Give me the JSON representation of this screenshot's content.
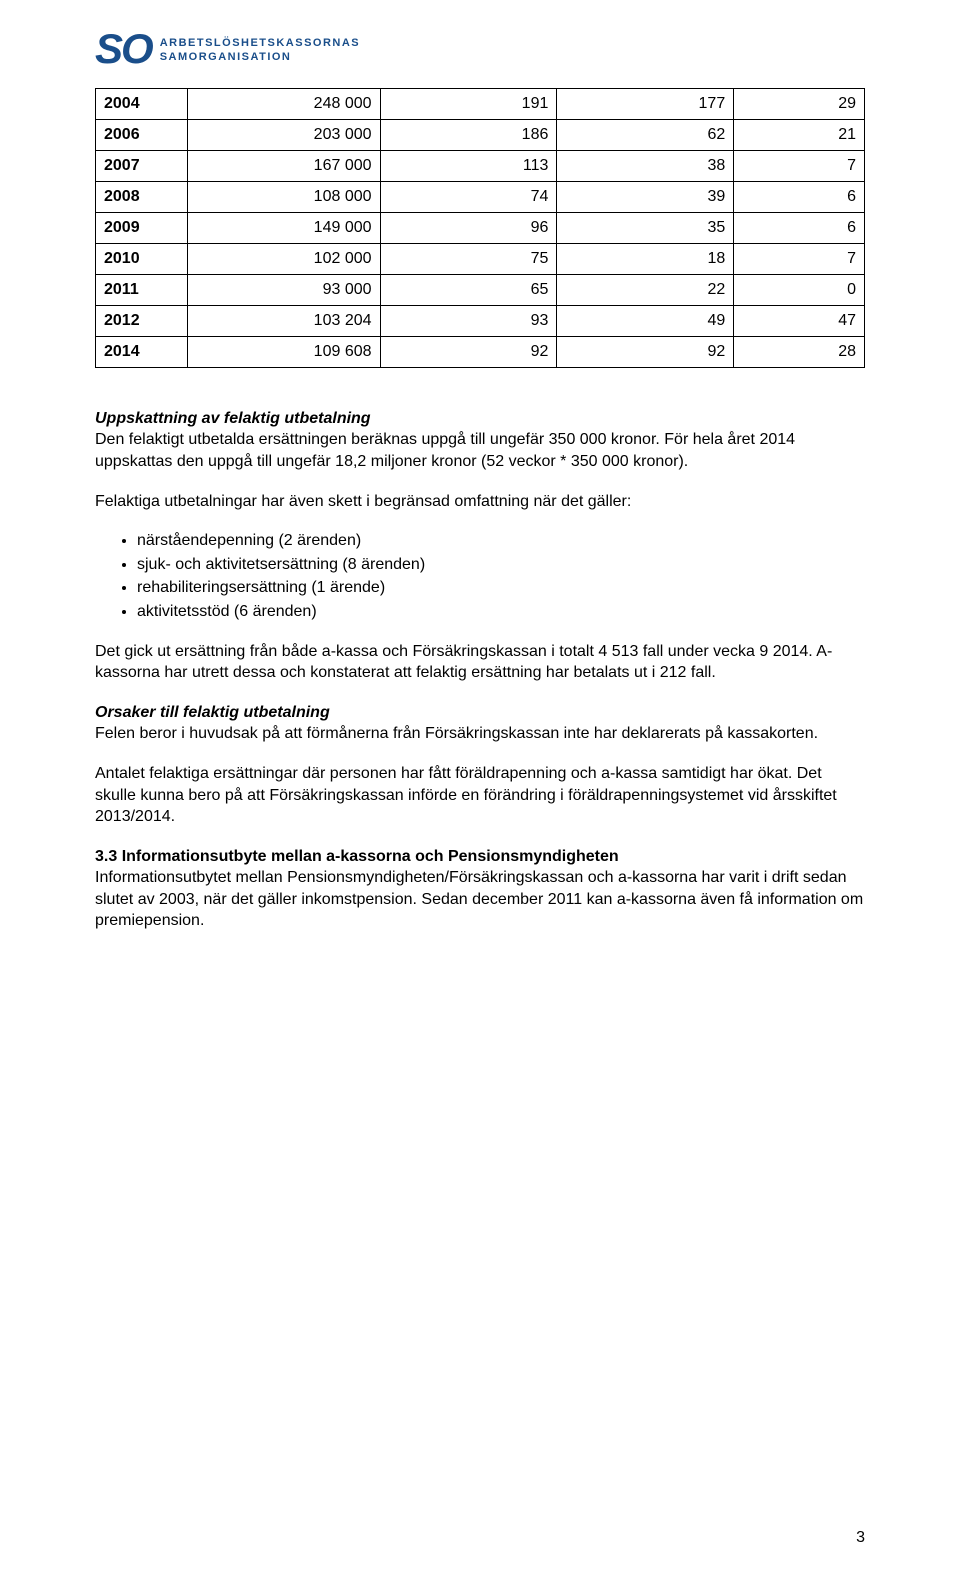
{
  "logo": {
    "mark": "SO",
    "line1": "ARBETSLÖSHETSKASSORNAS",
    "line2": "SAMORGANISATION",
    "color": "#1a4e8a"
  },
  "table": {
    "rows": [
      {
        "year": "2004",
        "b": "248 000",
        "c": "191",
        "d": "177",
        "e": "29"
      },
      {
        "year": "2006",
        "b": "203 000",
        "c": "186",
        "d": "62",
        "e": "21"
      },
      {
        "year": "2007",
        "b": "167 000",
        "c": "113",
        "d": "38",
        "e": "7"
      },
      {
        "year": "2008",
        "b": "108 000",
        "c": "74",
        "d": "39",
        "e": "6"
      },
      {
        "year": "2009",
        "b": "149 000",
        "c": "96",
        "d": "35",
        "e": "6"
      },
      {
        "year": "2010",
        "b": "102 000",
        "c": "75",
        "d": "18",
        "e": "7"
      },
      {
        "year": "2011",
        "b": "93 000",
        "c": "65",
        "d": "22",
        "e": "0"
      },
      {
        "year": "2012",
        "b": "103 204",
        "c": "93",
        "d": "49",
        "e": "47"
      },
      {
        "year": "2014",
        "b": "109 608",
        "c": "92",
        "d": "92",
        "e": "28"
      }
    ],
    "border_color": "#000000",
    "font_size": 16
  },
  "body": {
    "h1": "Uppskattning av felaktig utbetalning",
    "p1": "Den felaktigt utbetalda ersättningen beräknas uppgå till ungefär 350 000 kronor. För hela året 2014 uppskattas den uppgå till ungefär 18,2 miljoner kronor (52 veckor * 350 000 kronor).",
    "p2": "Felaktiga utbetalningar har även skett i begränsad omfattning när det gäller:",
    "bullets": [
      "närståendepenning (2 ärenden)",
      "sjuk- och aktivitetsersättning (8 ärenden)",
      "rehabiliteringsersättning (1 ärende)",
      "aktivitetsstöd (6 ärenden)"
    ],
    "p3": "Det gick ut ersättning från både a-kassa och Försäkringskassan i totalt 4 513 fall under vecka 9 2014. A-kassorna har utrett dessa och konstaterat att felaktig ersättning har betalats ut i 212 fall.",
    "h2": "Orsaker till felaktig utbetalning",
    "p4": "Felen beror i huvudsak på att förmånerna från Försäkringskassan inte har deklarerats på kassakorten.",
    "p5": "Antalet felaktiga ersättningar där personen har fått föräldrapenning och a-kassa samtidigt har ökat. Det skulle kunna bero på att Försäkringskassan införde en förändring i föräldrapenningsystemet vid årsskiftet 2013/2014.",
    "h3": "3.3 Informationsutbyte mellan a-kassorna och Pensionsmyndigheten",
    "p6": "Informationsutbytet mellan Pensionsmyndigheten/Försäkringskassan och a-kassorna har varit i drift sedan slutet av 2003, när det gäller inkomstpension. Sedan december 2011 kan a-kassorna även få information om premiepension."
  },
  "page_number": "3"
}
